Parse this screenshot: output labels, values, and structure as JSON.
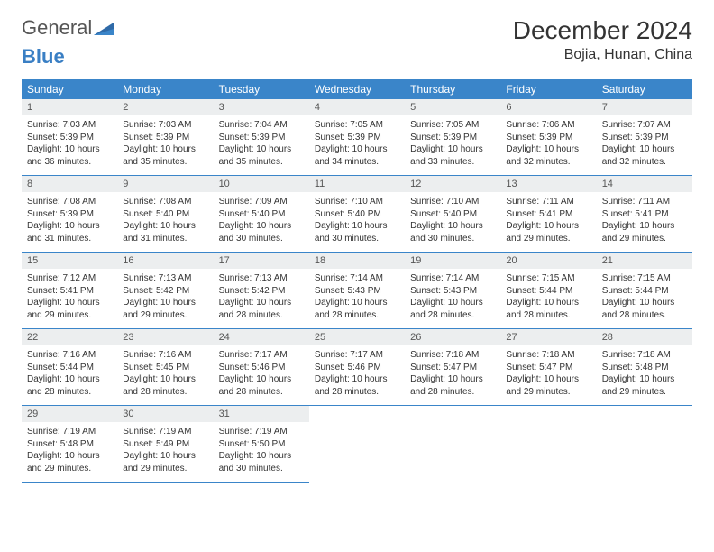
{
  "brand": {
    "part1": "General",
    "part2": "Blue"
  },
  "title": "December 2024",
  "location": "Bojia, Hunan, China",
  "colors": {
    "header_bg": "#3a85c9",
    "header_text": "#ffffff",
    "daynum_bg": "#eceeef",
    "border": "#3a85c9",
    "brand_gray": "#555555",
    "brand_blue": "#3a7fc4"
  },
  "weekdays": [
    "Sunday",
    "Monday",
    "Tuesday",
    "Wednesday",
    "Thursday",
    "Friday",
    "Saturday"
  ],
  "days": [
    {
      "n": "1",
      "sunrise": "7:03 AM",
      "sunset": "5:39 PM",
      "daylight": "10 hours and 36 minutes."
    },
    {
      "n": "2",
      "sunrise": "7:03 AM",
      "sunset": "5:39 PM",
      "daylight": "10 hours and 35 minutes."
    },
    {
      "n": "3",
      "sunrise": "7:04 AM",
      "sunset": "5:39 PM",
      "daylight": "10 hours and 35 minutes."
    },
    {
      "n": "4",
      "sunrise": "7:05 AM",
      "sunset": "5:39 PM",
      "daylight": "10 hours and 34 minutes."
    },
    {
      "n": "5",
      "sunrise": "7:05 AM",
      "sunset": "5:39 PM",
      "daylight": "10 hours and 33 minutes."
    },
    {
      "n": "6",
      "sunrise": "7:06 AM",
      "sunset": "5:39 PM",
      "daylight": "10 hours and 32 minutes."
    },
    {
      "n": "7",
      "sunrise": "7:07 AM",
      "sunset": "5:39 PM",
      "daylight": "10 hours and 32 minutes."
    },
    {
      "n": "8",
      "sunrise": "7:08 AM",
      "sunset": "5:39 PM",
      "daylight": "10 hours and 31 minutes."
    },
    {
      "n": "9",
      "sunrise": "7:08 AM",
      "sunset": "5:40 PM",
      "daylight": "10 hours and 31 minutes."
    },
    {
      "n": "10",
      "sunrise": "7:09 AM",
      "sunset": "5:40 PM",
      "daylight": "10 hours and 30 minutes."
    },
    {
      "n": "11",
      "sunrise": "7:10 AM",
      "sunset": "5:40 PM",
      "daylight": "10 hours and 30 minutes."
    },
    {
      "n": "12",
      "sunrise": "7:10 AM",
      "sunset": "5:40 PM",
      "daylight": "10 hours and 30 minutes."
    },
    {
      "n": "13",
      "sunrise": "7:11 AM",
      "sunset": "5:41 PM",
      "daylight": "10 hours and 29 minutes."
    },
    {
      "n": "14",
      "sunrise": "7:11 AM",
      "sunset": "5:41 PM",
      "daylight": "10 hours and 29 minutes."
    },
    {
      "n": "15",
      "sunrise": "7:12 AM",
      "sunset": "5:41 PM",
      "daylight": "10 hours and 29 minutes."
    },
    {
      "n": "16",
      "sunrise": "7:13 AM",
      "sunset": "5:42 PM",
      "daylight": "10 hours and 29 minutes."
    },
    {
      "n": "17",
      "sunrise": "7:13 AM",
      "sunset": "5:42 PM",
      "daylight": "10 hours and 28 minutes."
    },
    {
      "n": "18",
      "sunrise": "7:14 AM",
      "sunset": "5:43 PM",
      "daylight": "10 hours and 28 minutes."
    },
    {
      "n": "19",
      "sunrise": "7:14 AM",
      "sunset": "5:43 PM",
      "daylight": "10 hours and 28 minutes."
    },
    {
      "n": "20",
      "sunrise": "7:15 AM",
      "sunset": "5:44 PM",
      "daylight": "10 hours and 28 minutes."
    },
    {
      "n": "21",
      "sunrise": "7:15 AM",
      "sunset": "5:44 PM",
      "daylight": "10 hours and 28 minutes."
    },
    {
      "n": "22",
      "sunrise": "7:16 AM",
      "sunset": "5:44 PM",
      "daylight": "10 hours and 28 minutes."
    },
    {
      "n": "23",
      "sunrise": "7:16 AM",
      "sunset": "5:45 PM",
      "daylight": "10 hours and 28 minutes."
    },
    {
      "n": "24",
      "sunrise": "7:17 AM",
      "sunset": "5:46 PM",
      "daylight": "10 hours and 28 minutes."
    },
    {
      "n": "25",
      "sunrise": "7:17 AM",
      "sunset": "5:46 PM",
      "daylight": "10 hours and 28 minutes."
    },
    {
      "n": "26",
      "sunrise": "7:18 AM",
      "sunset": "5:47 PM",
      "daylight": "10 hours and 28 minutes."
    },
    {
      "n": "27",
      "sunrise": "7:18 AM",
      "sunset": "5:47 PM",
      "daylight": "10 hours and 29 minutes."
    },
    {
      "n": "28",
      "sunrise": "7:18 AM",
      "sunset": "5:48 PM",
      "daylight": "10 hours and 29 minutes."
    },
    {
      "n": "29",
      "sunrise": "7:19 AM",
      "sunset": "5:48 PM",
      "daylight": "10 hours and 29 minutes."
    },
    {
      "n": "30",
      "sunrise": "7:19 AM",
      "sunset": "5:49 PM",
      "daylight": "10 hours and 29 minutes."
    },
    {
      "n": "31",
      "sunrise": "7:19 AM",
      "sunset": "5:50 PM",
      "daylight": "10 hours and 30 minutes."
    }
  ],
  "labels": {
    "sunrise": "Sunrise: ",
    "sunset": "Sunset: ",
    "daylight": "Daylight: "
  }
}
